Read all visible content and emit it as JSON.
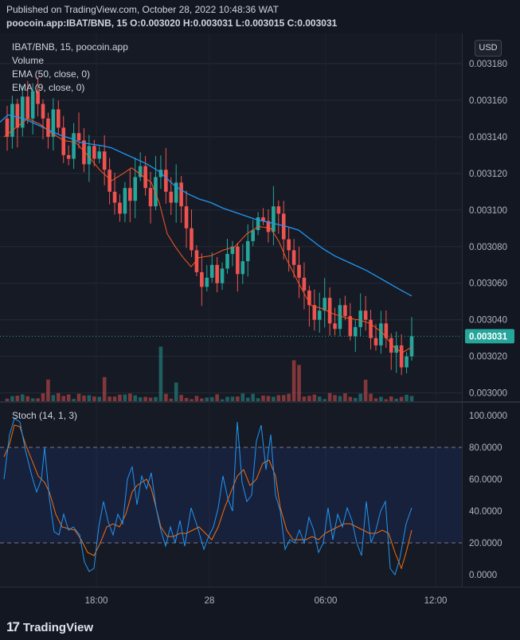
{
  "header": {
    "published": "Published on TradingView.com, October 28, 2022 10:48:36 WAT",
    "symbol_line": "poocoin.app:IBAT/BNB, 15  O:0.003020 H:0.003031 L:0.003015 C:0.003031"
  },
  "legend": {
    "title": "IBAT/BNB, 15, poocoin.app",
    "volume": "Volume",
    "ema50": "EMA (50, close, 0)",
    "ema9": "EMA (9, close, 0)",
    "stoch": "Stoch (14, 1, 3)"
  },
  "currency_button": "USD",
  "footer": {
    "brand": "TradingView",
    "mark": "17"
  },
  "colors": {
    "up": "#26a69a",
    "down": "#ef5350",
    "ema50": "#2196f3",
    "ema9": "#ff5722",
    "stoch_k": "#2196f3",
    "stoch_d": "#ff6d00",
    "price_tag": "#26a69a"
  },
  "chart_data": [
    {
      "type": "candlestick",
      "price_axis": {
        "ticks": [
          "0.003180",
          "0.003160",
          "0.003140",
          "0.003120",
          "0.003100",
          "0.003080",
          "0.003060",
          "0.003040",
          "0.003020",
          "0.003000"
        ],
        "ylim": [
          0.0029955,
          0.0031965
        ]
      },
      "time_axis": {
        "ticks": [
          "18:00",
          "28",
          "06:00",
          "12:00"
        ]
      },
      "last_price": "0.003031",
      "ema50": [
        [
          0,
          3148
        ],
        [
          10,
          3152
        ],
        [
          20,
          3151
        ],
        [
          30,
          3150
        ],
        [
          40,
          3148
        ],
        [
          50,
          3146
        ],
        [
          60,
          3144
        ],
        [
          75,
          3141
        ],
        [
          90,
          3139
        ],
        [
          100,
          3137
        ],
        [
          115,
          3136
        ],
        [
          130,
          3135
        ],
        [
          140,
          3134
        ],
        [
          155,
          3131
        ],
        [
          170,
          3128
        ],
        [
          185,
          3125
        ],
        [
          200,
          3121
        ],
        [
          210,
          3117
        ],
        [
          220,
          3113
        ],
        [
          235,
          3109
        ],
        [
          250,
          3106
        ],
        [
          265,
          3104
        ],
        [
          280,
          3101
        ],
        [
          300,
          3098
        ],
        [
          320,
          3095
        ],
        [
          340,
          3093
        ],
        [
          360,
          3091
        ],
        [
          375,
          3089
        ],
        [
          390,
          3084
        ],
        [
          405,
          3079
        ],
        [
          420,
          3075
        ],
        [
          440,
          3071
        ],
        [
          460,
          3067
        ],
        [
          480,
          3062
        ],
        [
          500,
          3057
        ],
        [
          517,
          3053
        ]
      ],
      "ema9": [
        [
          5,
          3140
        ],
        [
          20,
          3145
        ],
        [
          35,
          3150
        ],
        [
          50,
          3147
        ],
        [
          65,
          3142
        ],
        [
          80,
          3138
        ],
        [
          95,
          3137
        ],
        [
          110,
          3130
        ],
        [
          125,
          3122
        ],
        [
          140,
          3116
        ],
        [
          155,
          3120
        ],
        [
          165,
          3123
        ],
        [
          175,
          3120
        ],
        [
          190,
          3115
        ],
        [
          200,
          3104
        ],
        [
          210,
          3087
        ],
        [
          220,
          3080
        ],
        [
          230,
          3074
        ],
        [
          240,
          3069
        ],
        [
          250,
          3074
        ],
        [
          265,
          3075
        ],
        [
          280,
          3078
        ],
        [
          295,
          3080
        ],
        [
          310,
          3087
        ],
        [
          325,
          3091
        ],
        [
          340,
          3090
        ],
        [
          350,
          3083
        ],
        [
          360,
          3073
        ],
        [
          375,
          3060
        ],
        [
          390,
          3048
        ],
        [
          405,
          3046
        ],
        [
          420,
          3043
        ],
        [
          435,
          3041
        ],
        [
          450,
          3040
        ],
        [
          465,
          3038
        ],
        [
          480,
          3033
        ],
        [
          495,
          3025
        ],
        [
          505,
          3022
        ],
        [
          517,
          3025
        ]
      ],
      "volume_ylim": [
        0,
        140
      ]
    },
    {
      "type": "line",
      "title": "Stoch (14, 1, 3)",
      "ticks": [
        "100.0000",
        "80.0000",
        "60.0000",
        "40.0000",
        "20.0000",
        "0.0000"
      ],
      "ylim": [
        -8,
        108
      ],
      "bands": [
        20,
        80
      ],
      "series": [
        {
          "color_key": "stoch_k",
          "values": [
            [
              5,
              60
            ],
            [
              12,
              88
            ],
            [
              18,
              98
            ],
            [
              25,
              96
            ],
            [
              32,
              78
            ],
            [
              40,
              62
            ],
            [
              46,
              52
            ],
            [
              52,
              60
            ],
            [
              56,
              80
            ],
            [
              62,
              48
            ],
            [
              68,
              27
            ],
            [
              74,
              25
            ],
            [
              80,
              38
            ],
            [
              86,
              28
            ],
            [
              92,
              30
            ],
            [
              100,
              25
            ],
            [
              106,
              8
            ],
            [
              112,
              2
            ],
            [
              118,
              4
            ],
            [
              124,
              30
            ],
            [
              130,
              46
            ],
            [
              136,
              33
            ],
            [
              142,
              25
            ],
            [
              148,
              38
            ],
            [
              154,
              32
            ],
            [
              160,
              60
            ],
            [
              166,
              68
            ],
            [
              172,
              44
            ],
            [
              178,
              62
            ],
            [
              184,
              54
            ],
            [
              190,
              64
            ],
            [
              196,
              42
            ],
            [
              202,
              28
            ],
            [
              208,
              18
            ],
            [
              214,
              30
            ],
            [
              220,
              20
            ],
            [
              226,
              34
            ],
            [
              232,
              18
            ],
            [
              240,
              42
            ],
            [
              248,
              30
            ],
            [
              256,
              16
            ],
            [
              262,
              24
            ],
            [
              268,
              30
            ],
            [
              274,
              42
            ],
            [
              280,
              62
            ],
            [
              286,
              48
            ],
            [
              292,
              40
            ],
            [
              298,
              96
            ],
            [
              304,
              58
            ],
            [
              310,
              46
            ],
            [
              316,
              50
            ],
            [
              322,
              84
            ],
            [
              328,
              94
            ],
            [
              334,
              66
            ],
            [
              340,
              88
            ],
            [
              346,
              50
            ],
            [
              352,
              40
            ],
            [
              358,
              16
            ],
            [
              364,
              22
            ],
            [
              370,
              20
            ],
            [
              376,
              28
            ],
            [
              382,
              20
            ],
            [
              388,
              36
            ],
            [
              394,
              28
            ],
            [
              400,
              14
            ],
            [
              406,
              20
            ],
            [
              412,
              42
            ],
            [
              418,
              22
            ],
            [
              424,
              38
            ],
            [
              430,
              30
            ],
            [
              436,
              42
            ],
            [
              442,
              34
            ],
            [
              448,
              20
            ],
            [
              454,
              12
            ],
            [
              460,
              46
            ],
            [
              466,
              20
            ],
            [
              472,
              28
            ],
            [
              478,
              40
            ],
            [
              484,
              46
            ],
            [
              490,
              4
            ],
            [
              496,
              0
            ],
            [
              502,
              10
            ],
            [
              510,
              32
            ],
            [
              517,
              42
            ]
          ]
        },
        {
          "color_key": "stoch_d",
          "values": [
            [
              5,
              74
            ],
            [
              12,
              82
            ],
            [
              18,
              94
            ],
            [
              25,
              93
            ],
            [
              32,
              82
            ],
            [
              40,
              72
            ],
            [
              48,
              62
            ],
            [
              56,
              58
            ],
            [
              62,
              52
            ],
            [
              70,
              38
            ],
            [
              78,
              30
            ],
            [
              86,
              29
            ],
            [
              94,
              28
            ],
            [
              102,
              22
            ],
            [
              110,
              14
            ],
            [
              118,
              12
            ],
            [
              126,
              20
            ],
            [
              134,
              30
            ],
            [
              142,
              32
            ],
            [
              150,
              30
            ],
            [
              158,
              38
            ],
            [
              166,
              52
            ],
            [
              172,
              56
            ],
            [
              178,
              58
            ],
            [
              184,
              60
            ],
            [
              190,
              54
            ],
            [
              196,
              42
            ],
            [
              202,
              30
            ],
            [
              210,
              24
            ],
            [
              218,
              24
            ],
            [
              226,
              26
            ],
            [
              234,
              26
            ],
            [
              242,
              28
            ],
            [
              250,
              30
            ],
            [
              258,
              26
            ],
            [
              266,
              22
            ],
            [
              274,
              30
            ],
            [
              282,
              42
            ],
            [
              290,
              52
            ],
            [
              298,
              62
            ],
            [
              306,
              66
            ],
            [
              314,
              56
            ],
            [
              322,
              60
            ],
            [
              330,
              70
            ],
            [
              338,
              72
            ],
            [
              346,
              62
            ],
            [
              352,
              42
            ],
            [
              360,
              28
            ],
            [
              368,
              22
            ],
            [
              376,
              22
            ],
            [
              384,
              22
            ],
            [
              392,
              24
            ],
            [
              400,
              22
            ],
            [
              408,
              26
            ],
            [
              416,
              28
            ],
            [
              424,
              30
            ],
            [
              432,
              32
            ],
            [
              440,
              32
            ],
            [
              448,
              30
            ],
            [
              456,
              28
            ],
            [
              464,
              26
            ],
            [
              472,
              26
            ],
            [
              480,
              28
            ],
            [
              488,
              26
            ],
            [
              496,
              14
            ],
            [
              504,
              4
            ],
            [
              510,
              14
            ],
            [
              517,
              28
            ]
          ]
        }
      ]
    }
  ]
}
